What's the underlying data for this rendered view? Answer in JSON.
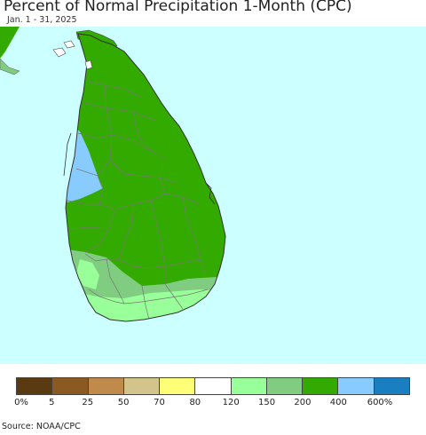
{
  "header": {
    "title": "Percent of Normal Precipitation 1-Month (CPC)",
    "subtitle": "Jan. 1 - 31, 2025"
  },
  "colors": {
    "ocean": "#ccffff",
    "above_200_400": "#33aa00",
    "above_400_600": "#88ccff",
    "range_150_200": "#80cc80",
    "range_120_150": "#99ff99",
    "border": "#888888"
  },
  "legend": {
    "colors": [
      "#5a3a10",
      "#8b5a22",
      "#c08a4a",
      "#d2c48a",
      "#ffff77",
      "#ffffff",
      "#99ff99",
      "#80cc80",
      "#33aa00",
      "#88ccff",
      "#1a7fc0"
    ],
    "labels": [
      "0%",
      "5",
      "25",
      "50",
      "70",
      "80",
      "120",
      "150",
      "200",
      "400",
      "600%"
    ]
  },
  "footer": {
    "source": "Source: NOAA/CPC"
  }
}
